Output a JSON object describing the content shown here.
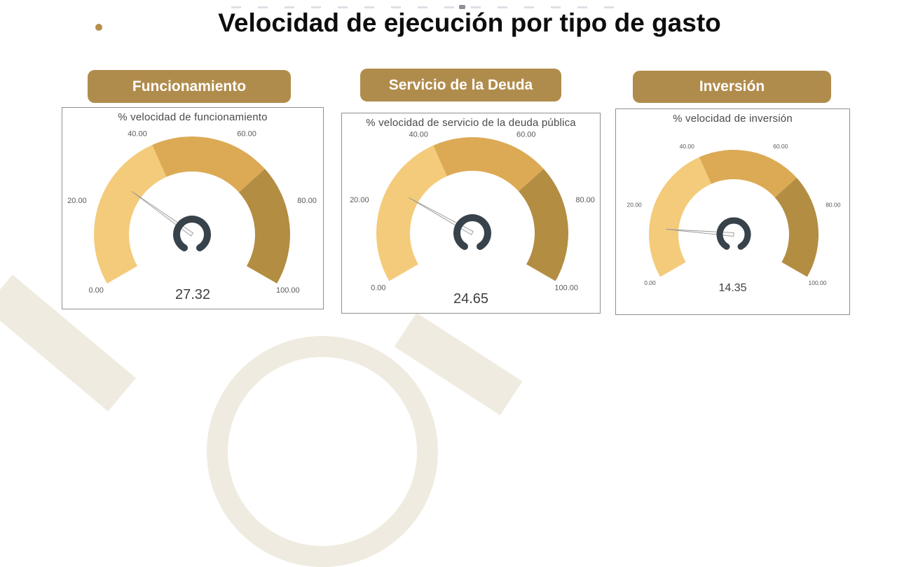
{
  "page": {
    "title": "Velocidad de ejecución por tipo de gasto",
    "bullet_color": "#b5914d",
    "background_color": "#ffffff",
    "watermark_color": "#f0ebe0"
  },
  "style": {
    "button_bg": "#b08c4c",
    "button_text_color": "#ffffff",
    "card_border_color": "#8f8f8f"
  },
  "cards": [
    {
      "header": "Funcionamiento"
    },
    {
      "header": "Servicio de la Deuda"
    },
    {
      "header": "Inversión"
    }
  ],
  "chart_data": [
    {
      "type": "gauge",
      "title": "% velocidad de funcionamiento",
      "value": 27.32,
      "value_label": "27.32",
      "min": 0,
      "max": 100,
      "start_angle": 210,
      "end_angle": -30,
      "ticks": [
        {
          "value": 0,
          "label": "0.00"
        },
        {
          "value": 20,
          "label": "20.00"
        },
        {
          "value": 40,
          "label": "40.00"
        },
        {
          "value": 60,
          "label": "60.00"
        },
        {
          "value": 80,
          "label": "80.00"
        },
        {
          "value": 100,
          "label": "100.00"
        }
      ],
      "segments": [
        {
          "from": 0,
          "to": 40,
          "color": "#f4cb7a"
        },
        {
          "from": 40,
          "to": 70,
          "color": "#dcaa55"
        },
        {
          "from": 70,
          "to": 100,
          "color": "#b28d42"
        }
      ],
      "needle_color": "#f7f7f7",
      "needle_outline_color": "#9b9b9b",
      "hub_color": "#37424a",
      "tick_color": "#595959",
      "value_color": "#3f3f3f"
    },
    {
      "type": "gauge",
      "title": "% velocidad de servicio de la deuda pública",
      "value": 24.65,
      "value_label": "24.65",
      "min": 0,
      "max": 100,
      "start_angle": 210,
      "end_angle": -30,
      "ticks": [
        {
          "value": 0,
          "label": "0.00"
        },
        {
          "value": 20,
          "label": "20.00"
        },
        {
          "value": 40,
          "label": "40.00"
        },
        {
          "value": 60,
          "label": "60.00"
        },
        {
          "value": 80,
          "label": "80.00"
        },
        {
          "value": 100,
          "label": "100.00"
        }
      ],
      "segments": [
        {
          "from": 0,
          "to": 40,
          "color": "#f4cb7a"
        },
        {
          "from": 40,
          "to": 70,
          "color": "#dcaa55"
        },
        {
          "from": 70,
          "to": 100,
          "color": "#b28d42"
        }
      ],
      "needle_color": "#f7f7f7",
      "needle_outline_color": "#9b9b9b",
      "hub_color": "#37424a",
      "tick_color": "#595959",
      "value_color": "#3f3f3f"
    },
    {
      "type": "gauge",
      "title": "% velocidad de inversión",
      "value": 14.35,
      "value_label": "14.35",
      "min": 0,
      "max": 100,
      "start_angle": 210,
      "end_angle": -30,
      "ticks": [
        {
          "value": 0,
          "label": "0.00"
        },
        {
          "value": 20,
          "label": "20.00"
        },
        {
          "value": 40,
          "label": "40.00"
        },
        {
          "value": 60,
          "label": "60.00"
        },
        {
          "value": 80,
          "label": "80.00"
        },
        {
          "value": 100,
          "label": "100.00"
        }
      ],
      "segments": [
        {
          "from": 0,
          "to": 40,
          "color": "#f4cb7a"
        },
        {
          "from": 40,
          "to": 70,
          "color": "#dcaa55"
        },
        {
          "from": 70,
          "to": 100,
          "color": "#b28d42"
        }
      ],
      "needle_color": "#f7f7f7",
      "needle_outline_color": "#9b9b9b",
      "hub_color": "#37424a",
      "tick_color": "#595959",
      "value_color": "#3f3f3f"
    }
  ]
}
